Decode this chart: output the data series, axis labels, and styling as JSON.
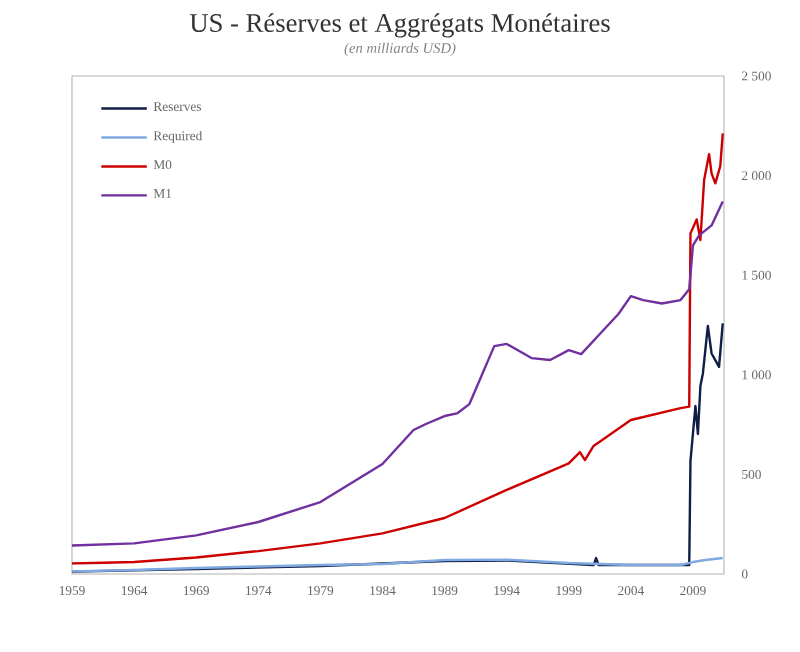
{
  "chart_data": {
    "type": "line",
    "title": "US - Réserves et Aggrégats Monétaires",
    "subtitle": "(en milliards USD)",
    "xlim": [
      1959,
      2011.5
    ],
    "xticks": [
      1959,
      1964,
      1969,
      1974,
      1979,
      1984,
      1989,
      1994,
      1999,
      2004,
      2009
    ],
    "ylim": [
      0,
      2500
    ],
    "yticks": [
      0,
      500,
      {
        "value": 1000,
        "label": "1 000"
      },
      {
        "value": 1500,
        "label": "1 500"
      },
      {
        "value": 2000,
        "label": "2 000"
      },
      {
        "value": 2500,
        "label": "2 500"
      }
    ],
    "legend": "top left",
    "grid": false,
    "marker": "none",
    "line_style": "solid",
    "series": [
      {
        "name": "Reserves",
        "color": "#0f1e45",
        "x": [
          1959,
          1969,
          1979,
          1989,
          1994,
          2001,
          2001.2,
          2001.4,
          2008,
          2008.7,
          2008.8,
          2009.2,
          2009.4,
          2009.6,
          2009.8,
          2010.2,
          2010.5,
          2010.8,
          2011.1,
          2011.4
        ],
        "values": [
          12,
          25,
          40,
          65,
          68,
          45,
          80,
          45,
          45,
          45,
          568,
          843,
          703,
          944,
          1007,
          1245,
          1107,
          1074,
          1040,
          1258
        ]
      },
      {
        "name": "Required",
        "color": "#7fa9e0",
        "x": [
          1959,
          1964,
          1969,
          1974,
          1979,
          1984,
          1989,
          1994,
          1999,
          2004,
          2008,
          2009,
          2010,
          2011.4
        ],
        "values": [
          13,
          20,
          30,
          38,
          45,
          50,
          70,
          72,
          55,
          45,
          45,
          60,
          70,
          80
        ]
      },
      {
        "name": "M0",
        "color": "#cc0000",
        "x": [
          1959,
          1964,
          1969,
          1974,
          1979,
          1984,
          1989,
          1994,
          1999,
          1999.9,
          2000.3,
          2001,
          2004,
          2008,
          2008.7,
          2008.8,
          2009.3,
          2009.6,
          2009.9,
          2010.3,
          2010.5,
          2010.8,
          2011.2,
          2011.4
        ],
        "values": [
          53,
          60,
          83,
          115,
          154,
          204,
          281,
          422,
          555,
          612,
          572,
          643,
          773,
          833,
          840,
          1710,
          1780,
          1677,
          1978,
          2108,
          2011,
          1961,
          2048,
          2212
        ]
      },
      {
        "name": "M1",
        "color": "#7030a0",
        "x": [
          1959,
          1964,
          1969,
          1974,
          1979,
          1984,
          1986.5,
          1987.5,
          1989,
          1990,
          1991,
          1993,
          1994,
          1996,
          1997.5,
          1999,
          2000,
          2001.5,
          2003,
          2004,
          2005,
          2006.5,
          2008,
          2008.7,
          2009,
          2009.5,
          2010.5,
          2011.4
        ],
        "values": [
          143,
          154,
          194,
          261,
          361,
          552,
          723,
          753,
          793,
          806,
          853,
          1144,
          1155,
          1084,
          1074,
          1124,
          1104,
          1205,
          1305,
          1395,
          1375,
          1358,
          1375,
          1430,
          1650,
          1700,
          1750,
          1870
        ]
      }
    ]
  }
}
